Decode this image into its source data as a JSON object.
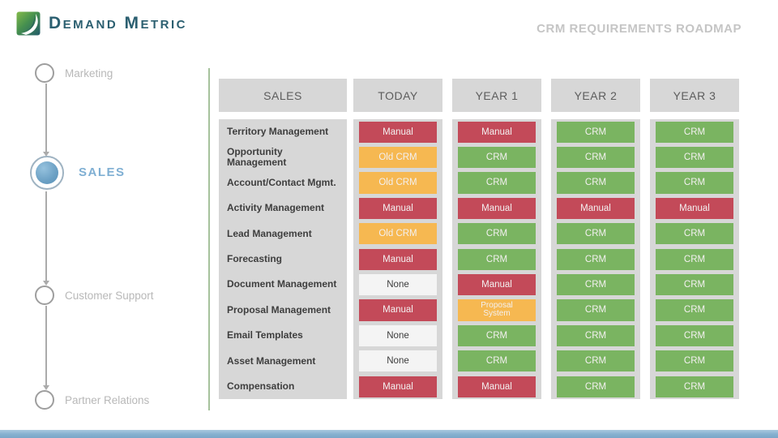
{
  "brand": {
    "logo_text": "Demand Metric"
  },
  "header": {
    "title": "CRM REQUIREMENTS ROADMAP"
  },
  "sidebar": {
    "items": [
      {
        "label": "Marketing",
        "active": false
      },
      {
        "label": "SALES",
        "active": true
      },
      {
        "label": "Customer Support",
        "active": false
      },
      {
        "label": "Partner Relations",
        "active": false
      }
    ]
  },
  "table": {
    "columns": [
      "SALES",
      "TODAY",
      "YEAR 1",
      "YEAR 2",
      "YEAR 3"
    ],
    "rows": [
      {
        "label": "Territory Management",
        "cells": [
          {
            "text": "Manual",
            "status": "manual"
          },
          {
            "text": "Manual",
            "status": "manual"
          },
          {
            "text": "CRM",
            "status": "crm"
          },
          {
            "text": "CRM",
            "status": "crm"
          }
        ]
      },
      {
        "label": "Opportunity Management",
        "cells": [
          {
            "text": "Old CRM",
            "status": "old-crm"
          },
          {
            "text": "CRM",
            "status": "crm"
          },
          {
            "text": "CRM",
            "status": "crm"
          },
          {
            "text": "CRM",
            "status": "crm"
          }
        ]
      },
      {
        "label": "Account/Contact Mgmt.",
        "cells": [
          {
            "text": "Old CRM",
            "status": "old-crm"
          },
          {
            "text": "CRM",
            "status": "crm"
          },
          {
            "text": "CRM",
            "status": "crm"
          },
          {
            "text": "CRM",
            "status": "crm"
          }
        ]
      },
      {
        "label": "Activity Management",
        "cells": [
          {
            "text": "Manual",
            "status": "manual"
          },
          {
            "text": "Manual",
            "status": "manual"
          },
          {
            "text": "Manual",
            "status": "manual"
          },
          {
            "text": "Manual",
            "status": "manual"
          }
        ]
      },
      {
        "label": "Lead Management",
        "cells": [
          {
            "text": "Old CRM",
            "status": "old-crm"
          },
          {
            "text": "CRM",
            "status": "crm"
          },
          {
            "text": "CRM",
            "status": "crm"
          },
          {
            "text": "CRM",
            "status": "crm"
          }
        ]
      },
      {
        "label": "Forecasting",
        "cells": [
          {
            "text": "Manual",
            "status": "manual"
          },
          {
            "text": "CRM",
            "status": "crm"
          },
          {
            "text": "CRM",
            "status": "crm"
          },
          {
            "text": "CRM",
            "status": "crm"
          }
        ]
      },
      {
        "label": "Document Management",
        "cells": [
          {
            "text": "None",
            "status": "none"
          },
          {
            "text": "Manual",
            "status": "manual"
          },
          {
            "text": "CRM",
            "status": "crm"
          },
          {
            "text": "CRM",
            "status": "crm"
          }
        ]
      },
      {
        "label": "Proposal Management",
        "cells": [
          {
            "text": "Manual",
            "status": "manual"
          },
          {
            "text": "Proposal\nSystem",
            "status": "proposal"
          },
          {
            "text": "CRM",
            "status": "crm"
          },
          {
            "text": "CRM",
            "status": "crm"
          }
        ]
      },
      {
        "label": "Email Templates",
        "cells": [
          {
            "text": "None",
            "status": "none"
          },
          {
            "text": "CRM",
            "status": "crm"
          },
          {
            "text": "CRM",
            "status": "crm"
          },
          {
            "text": "CRM",
            "status": "crm"
          }
        ]
      },
      {
        "label": "Asset Management",
        "cells": [
          {
            "text": "None",
            "status": "none"
          },
          {
            "text": "CRM",
            "status": "crm"
          },
          {
            "text": "CRM",
            "status": "crm"
          },
          {
            "text": "CRM",
            "status": "crm"
          }
        ]
      },
      {
        "label": "Compensation",
        "cells": [
          {
            "text": "Manual",
            "status": "manual"
          },
          {
            "text": "Manual",
            "status": "manual"
          },
          {
            "text": "CRM",
            "status": "crm"
          },
          {
            "text": "CRM",
            "status": "crm"
          }
        ]
      }
    ]
  },
  "colors": {
    "manual": "#c34a59",
    "old_crm": "#f6b851",
    "crm": "#7ab461",
    "none": "#f4f4f4",
    "panel_gray": "#d7d7d7",
    "accent_blue": "#7fafd3",
    "divider_green": "#a6c29c",
    "logo_teal": "#2b5f70"
  }
}
